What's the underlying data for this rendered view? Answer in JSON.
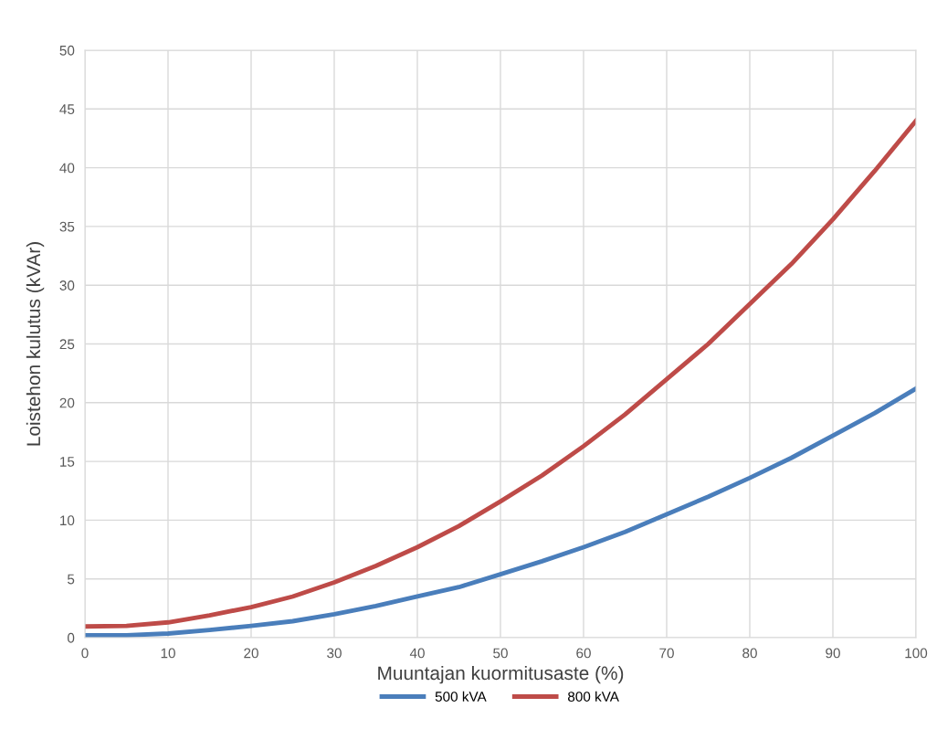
{
  "chart_data": {
    "type": "line",
    "xlabel": "Muuntajan kuormitusaste (%)",
    "ylabel": "Loistehon kulutus (kVAr)",
    "x": [
      0,
      5,
      10,
      15,
      20,
      25,
      30,
      35,
      40,
      45,
      50,
      55,
      60,
      65,
      70,
      75,
      80,
      85,
      90,
      95,
      100
    ],
    "series": [
      {
        "name": "500 kVA",
        "color": "#4a7ebb",
        "values": [
          0.2,
          0.2,
          0.35,
          0.65,
          1.0,
          1.4,
          2.0,
          2.7,
          3.5,
          4.3,
          5.4,
          6.5,
          7.7,
          9.0,
          10.5,
          12.0,
          13.6,
          15.3,
          17.2,
          19.1,
          21.2
        ]
      },
      {
        "name": "800 kVA",
        "color": "#be4b48",
        "values": [
          0.95,
          1.0,
          1.3,
          1.9,
          2.6,
          3.5,
          4.7,
          6.1,
          7.7,
          9.5,
          11.6,
          13.8,
          16.3,
          19.0,
          22.0,
          25.0,
          28.4,
          31.8,
          35.6,
          39.7,
          44.0
        ]
      }
    ],
    "xlim": [
      0,
      100
    ],
    "xticks": [
      0,
      10,
      20,
      30,
      40,
      50,
      60,
      70,
      80,
      90,
      100
    ],
    "ylim": [
      0,
      50
    ],
    "yticks": [
      0,
      5,
      10,
      15,
      20,
      25,
      30,
      35,
      40,
      45,
      50
    ],
    "grid": true,
    "legend": "bottom",
    "marker": "none",
    "line_style": "solid"
  }
}
